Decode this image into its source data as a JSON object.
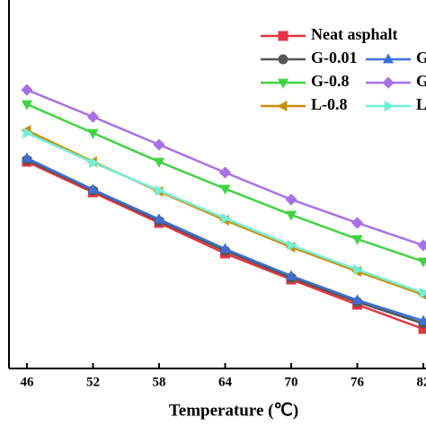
{
  "chart_data": {
    "type": "line",
    "x_label": "Temperature (℃)",
    "x": [
      46,
      52,
      58,
      64,
      70,
      76,
      82
    ],
    "xlim": [
      44.37,
      82.24
    ],
    "xticks": [
      46,
      52,
      58,
      64,
      70,
      76,
      82
    ],
    "ylim": [
      0,
      4.1
    ],
    "legend": "upper right",
    "series": [
      {
        "name": "Neat asphalt",
        "color": "#e8333f",
        "marker": "square",
        "values": [
          2.3,
          1.96,
          1.62,
          1.28,
          0.99,
          0.71,
          0.44
        ]
      },
      {
        "name": "G-0.01",
        "color": "#555555",
        "marker": "circle",
        "values": [
          2.32,
          1.98,
          1.64,
          1.31,
          1.01,
          0.74,
          0.5
        ]
      },
      {
        "name": "G",
        "color": "#3d6fd8",
        "marker": "triangle-up",
        "values": [
          2.34,
          1.99,
          1.66,
          1.33,
          1.03,
          0.76,
          0.53
        ]
      },
      {
        "name": "G-0.8",
        "color": "#3fd43f",
        "marker": "triangle-down",
        "values": [
          2.94,
          2.62,
          2.3,
          2.0,
          1.71,
          1.44,
          1.19
        ]
      },
      {
        "name": "G",
        "color": "#a870e8",
        "marker": "diamond",
        "values": [
          3.1,
          2.8,
          2.49,
          2.18,
          1.88,
          1.62,
          1.37
        ]
      },
      {
        "name": "L-0.8",
        "color": "#c8900a",
        "marker": "triangle-left",
        "values": [
          2.65,
          2.3,
          1.97,
          1.65,
          1.35,
          1.08,
          0.82
        ]
      },
      {
        "name": "L",
        "color": "#6ff0d8",
        "marker": "triangle-right",
        "values": [
          2.62,
          2.29,
          1.98,
          1.67,
          1.37,
          1.1,
          0.84
        ]
      }
    ]
  }
}
